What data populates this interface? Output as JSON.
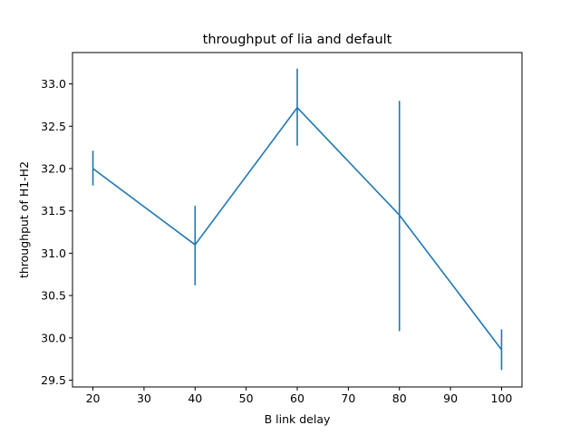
{
  "chart_data": {
    "type": "line",
    "title": "throughput of lia and default",
    "xlabel": "B link delay",
    "ylabel": "throughput of H1-H2",
    "x": [
      20,
      40,
      60,
      80,
      100
    ],
    "series": [
      {
        "values": [
          32.0,
          31.1,
          32.72,
          31.45,
          29.86
        ],
        "error_low": [
          31.8,
          30.62,
          32.27,
          30.08,
          29.62
        ],
        "error_high": [
          32.21,
          31.56,
          33.18,
          32.8,
          30.1
        ],
        "color": "#1f77b4"
      }
    ],
    "xticks": [
      20,
      30,
      40,
      50,
      60,
      70,
      80,
      90,
      100
    ],
    "xtick_labels": [
      "20",
      "30",
      "40",
      "50",
      "60",
      "70",
      "80",
      "90",
      "100"
    ],
    "yticks": [
      29.5,
      30.0,
      30.5,
      31.0,
      31.5,
      32.0,
      32.5,
      33.0
    ],
    "ytick_labels": [
      "29.5",
      "30.0",
      "30.5",
      "31.0",
      "31.5",
      "32.0",
      "32.5",
      "33.0"
    ],
    "xlim": [
      16,
      104
    ],
    "ylim": [
      29.42,
      33.37
    ],
    "grid": false,
    "legend": "none"
  }
}
